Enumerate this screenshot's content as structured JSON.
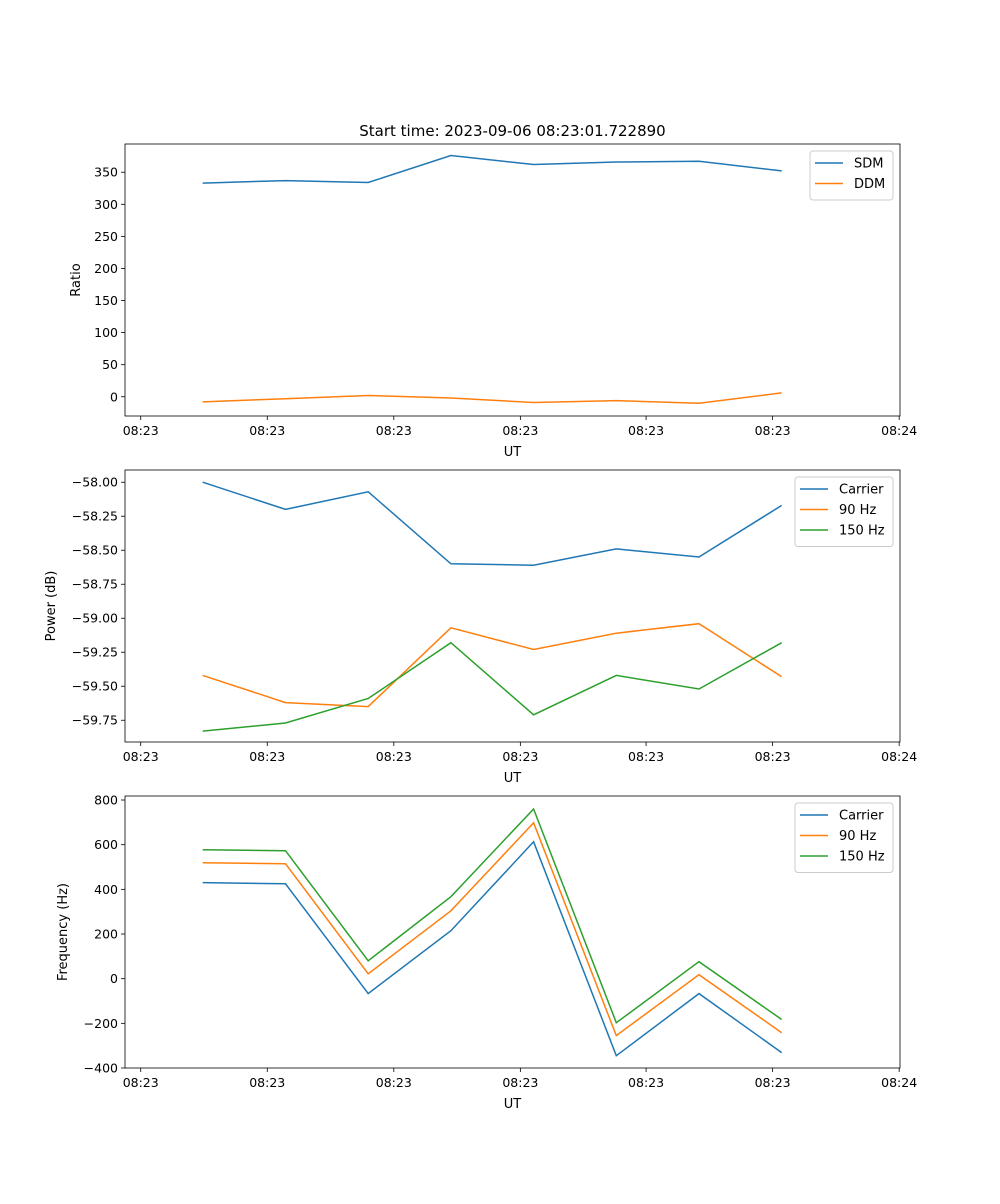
{
  "title": "Start time: 2023-09-06 08:23:01.722890",
  "colors": {
    "blue": "#1f77b4",
    "orange": "#ff7f0e",
    "green": "#2ca02c"
  },
  "chart_data": [
    {
      "type": "line",
      "title": "Start time: 2023-09-06 08:23:01.722890",
      "xlabel": "UT",
      "ylabel": "Ratio",
      "x": [
        0,
        1,
        2,
        3,
        4,
        5,
        6,
        7
      ],
      "xlim": [
        -0.94,
        8.43
      ],
      "xticks": [
        -0.75,
        0.78,
        2.31,
        3.84,
        5.36,
        6.89,
        8.42
      ],
      "xtick_labels": [
        "08:23",
        "08:23",
        "08:23",
        "08:23",
        "08:23",
        "08:23",
        "08:24"
      ],
      "ylim": [
        -30,
        394
      ],
      "yticks": [
        0,
        50,
        100,
        150,
        200,
        250,
        300,
        350
      ],
      "ytick_labels": [
        "0",
        "50",
        "100",
        "150",
        "200",
        "250",
        "300",
        "350"
      ],
      "legend": "top-right",
      "series": [
        {
          "name": "SDM",
          "color": "#1f77b4",
          "values": [
            333,
            337,
            334,
            376,
            362,
            366,
            367,
            352
          ]
        },
        {
          "name": "DDM",
          "color": "#ff7f0e",
          "values": [
            -8,
            -3,
            2,
            -2,
            -9,
            -6,
            -10,
            6
          ]
        }
      ]
    },
    {
      "type": "line",
      "title": "",
      "xlabel": "UT",
      "ylabel": "Power (dB)",
      "x": [
        0,
        1,
        2,
        3,
        4,
        5,
        6,
        7
      ],
      "xlim": [
        -0.94,
        8.43
      ],
      "xticks": [
        -0.75,
        0.78,
        2.31,
        3.84,
        5.36,
        6.89,
        8.42
      ],
      "xtick_labels": [
        "08:23",
        "08:23",
        "08:23",
        "08:23",
        "08:23",
        "08:23",
        "08:24"
      ],
      "ylim": [
        -59.91,
        -57.91
      ],
      "yticks": [
        -58.0,
        -58.25,
        -58.5,
        -58.75,
        -59.0,
        -59.25,
        -59.5,
        -59.75
      ],
      "ytick_labels": [
        "−58.00",
        "−58.25",
        "−58.50",
        "−58.75",
        "−59.00",
        "−59.25",
        "−59.50",
        "−59.75"
      ],
      "legend": "top-right",
      "series": [
        {
          "name": "Carrier",
          "color": "#1f77b4",
          "values": [
            -58.0,
            -58.2,
            -58.07,
            -58.6,
            -58.61,
            -58.49,
            -58.55,
            -58.17
          ]
        },
        {
          "name": "90 Hz",
          "color": "#ff7f0e",
          "values": [
            -59.42,
            -59.62,
            -59.65,
            -59.07,
            -59.23,
            -59.11,
            -59.04,
            -59.43
          ]
        },
        {
          "name": "150 Hz",
          "color": "#2ca02c",
          "values": [
            -59.83,
            -59.77,
            -59.59,
            -59.18,
            -59.71,
            -59.42,
            -59.52,
            -59.18
          ]
        }
      ]
    },
    {
      "type": "line",
      "title": "",
      "xlabel": "UT",
      "ylabel": "Frequency (Hz)",
      "x": [
        0,
        1,
        2,
        3,
        4,
        5,
        6,
        7
      ],
      "xlim": [
        -0.94,
        8.43
      ],
      "xticks": [
        -0.75,
        0.78,
        2.31,
        3.84,
        5.36,
        6.89,
        8.42
      ],
      "xtick_labels": [
        "08:23",
        "08:23",
        "08:23",
        "08:23",
        "08:23",
        "08:23",
        "08:24"
      ],
      "ylim": [
        -400,
        818
      ],
      "yticks": [
        -400,
        -200,
        0,
        200,
        400,
        600,
        800
      ],
      "ytick_labels": [
        "−400",
        "−200",
        "0",
        "200",
        "400",
        "600",
        "800"
      ],
      "legend": "top-right",
      "series": [
        {
          "name": "Carrier",
          "color": "#1f77b4",
          "values": [
            430,
            425,
            -67,
            215,
            613,
            -345,
            -67,
            -331
          ]
        },
        {
          "name": "90 Hz",
          "color": "#ff7f0e",
          "values": [
            519,
            515,
            22,
            304,
            698,
            -255,
            18,
            -242
          ]
        },
        {
          "name": "150 Hz",
          "color": "#2ca02c",
          "values": [
            577,
            573,
            80,
            367,
            760,
            -197,
            76,
            -183
          ]
        }
      ]
    }
  ]
}
